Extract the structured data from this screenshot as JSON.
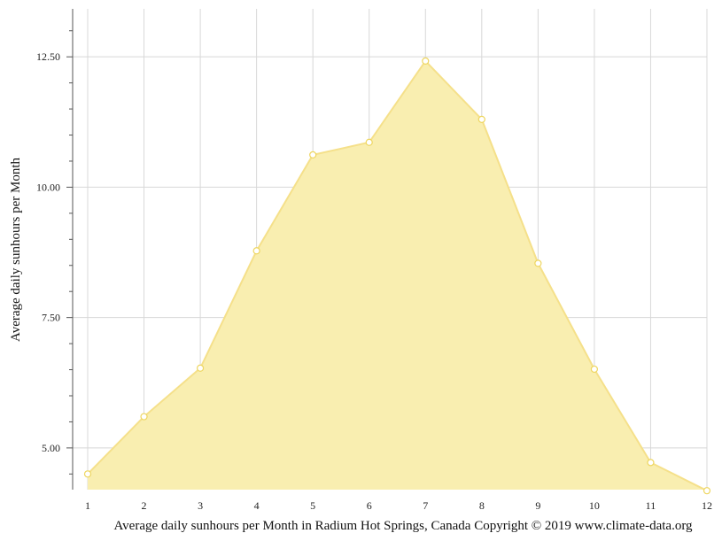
{
  "chart_data": {
    "type": "area",
    "x": [
      1,
      2,
      3,
      4,
      5,
      6,
      7,
      8,
      9,
      10,
      11,
      12
    ],
    "series": [
      {
        "values": [
          4.5,
          5.6,
          6.53,
          8.78,
          10.62,
          10.86,
          12.42,
          11.3,
          8.54,
          6.51,
          4.72,
          4.18
        ]
      }
    ],
    "x_tick_labels": [
      "1",
      "2",
      "3",
      "4",
      "5",
      "6",
      "7",
      "8",
      "9",
      "10",
      "11",
      "12"
    ],
    "y_tick_values": [
      5,
      7.5,
      10,
      12.5
    ],
    "y_tick_labels": [
      "5.00",
      "7.50",
      "10.00",
      "12.50"
    ],
    "ylabel": "Average daily sunhours per Month",
    "xlabel": "",
    "caption": "Average daily sunhours per Month in Radium Hot Springs, Canada Copyright © 2019 www.climate-data.org",
    "ylim": [
      4.2,
      13.42
    ],
    "xlim": [
      1,
      12
    ],
    "grid": true,
    "colors": {
      "fill": "#f9eeb0",
      "line": "#f5e08a",
      "marker_fill": "#ffffff",
      "marker_stroke": "#eed660",
      "grid": "#d8d8d8",
      "axis": "#555555"
    }
  }
}
